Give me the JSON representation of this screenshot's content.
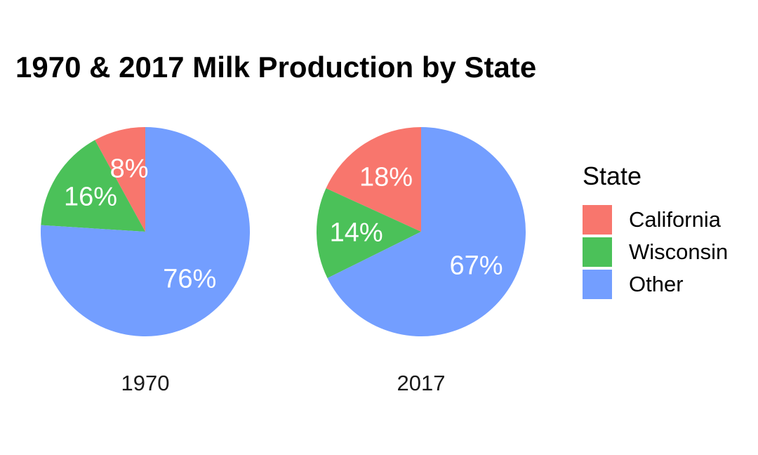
{
  "chart_data": {
    "type": "pie",
    "title": "1970 & 2017 Milk Production by State",
    "legend": {
      "title": "State",
      "placement": "right",
      "entries": [
        "California",
        "Wisconsin",
        "Other"
      ]
    },
    "colors": {
      "California": "#F8766D",
      "Wisconsin": "#4BC159",
      "Other": "#739EFF"
    },
    "label_color": "#FFFFFF",
    "pies": [
      {
        "facet": "1970",
        "slices": [
          {
            "category": "California",
            "value": 8,
            "label": "8%"
          },
          {
            "category": "Wisconsin",
            "value": 16,
            "label": "16%"
          },
          {
            "category": "Other",
            "value": 76,
            "label": "76%"
          }
        ]
      },
      {
        "facet": "2017",
        "slices": [
          {
            "category": "California",
            "value": 18,
            "label": "18%"
          },
          {
            "category": "Wisconsin",
            "value": 14,
            "label": "14%"
          },
          {
            "category": "Other",
            "value": 67,
            "label": "67%"
          }
        ]
      }
    ]
  }
}
